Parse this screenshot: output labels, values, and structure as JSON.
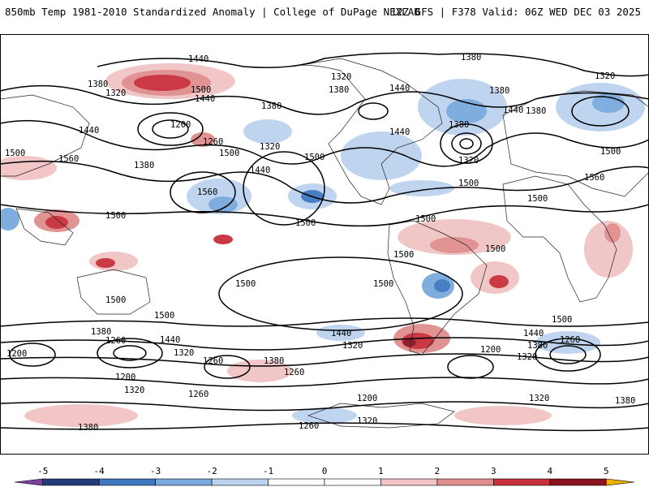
{
  "header": {
    "left": "850mb Temp 1981-2010 Standardized Anomaly | College of DuPage NEXLAB",
    "right": "12Z GFS | F378 Valid: 06Z WED DEC 03 2025"
  },
  "colorbar": {
    "ticks": [
      "-5",
      "-4",
      "-3",
      "-2",
      "-1",
      "0",
      "1",
      "2",
      "3",
      "4",
      "5"
    ],
    "min": -5.5,
    "max": 5.5,
    "bins": [
      {
        "from": -5.5,
        "to": -5,
        "color": "#7b3fa0"
      },
      {
        "from": -5,
        "to": -4,
        "color": "#243d7a"
      },
      {
        "from": -4,
        "to": -3,
        "color": "#3f78c0"
      },
      {
        "from": -3,
        "to": -2,
        "color": "#79a9dd"
      },
      {
        "from": -2,
        "to": -1,
        "color": "#bcd3ef"
      },
      {
        "from": -1,
        "to": 0,
        "color": "#ffffff"
      },
      {
        "from": 0,
        "to": 1,
        "color": "#ffffff"
      },
      {
        "from": 1,
        "to": 2,
        "color": "#f1c3c3"
      },
      {
        "from": 2,
        "to": 3,
        "color": "#e08d8d"
      },
      {
        "from": 3,
        "to": 4,
        "color": "#c8303a"
      },
      {
        "from": 4,
        "to": 5,
        "color": "#8b1320"
      },
      {
        "from": 5,
        "to": 5.5,
        "color": "#f0b000"
      }
    ]
  },
  "contour_labels": [
    "1440",
    "1380",
    "1320",
    "1500",
    "1440",
    "1380",
    "1200",
    "1260",
    "1320",
    "1500",
    "1440",
    "1380",
    "1560",
    "1500",
    "1500",
    "1440",
    "1560",
    "1500",
    "1500",
    "1500",
    "1380",
    "1320",
    "1380",
    "1440",
    "1440",
    "1380",
    "1320",
    "1380",
    "1320",
    "1380",
    "1440",
    "1500",
    "1500",
    "1500",
    "1500",
    "1560",
    "1500",
    "1500",
    "1500",
    "1500",
    "1500",
    "1440",
    "1320",
    "1380",
    "1260",
    "1200",
    "1260",
    "1320",
    "1260",
    "1200",
    "1260",
    "1200",
    "1320",
    "1380",
    "1260",
    "1320",
    "1440",
    "1380",
    "1320",
    "1260",
    "1200",
    "1320",
    "1380",
    "1500",
    "1440",
    "1380"
  ],
  "colors": {
    "cold": "#3f78c0",
    "warm": "#c8303a",
    "contour": "#000000"
  }
}
